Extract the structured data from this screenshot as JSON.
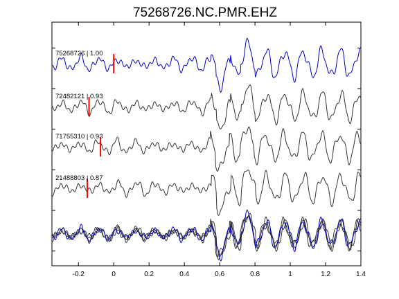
{
  "chart_data": {
    "type": "line",
    "title": "75268726.NC.PMR.EHZ",
    "xlabel": "",
    "ylabel": "",
    "xlim": [
      -0.35,
      1.4
    ],
    "xticks": [
      -0.2,
      0,
      0.2,
      0.4,
      0.6,
      0.8,
      1,
      1.2,
      1.4
    ],
    "xtick_labels": [
      "-0.2",
      "0",
      "0.2",
      "0.4",
      "0.6",
      "0.8",
      "1",
      "1.2",
      "1.4"
    ],
    "grid": false,
    "legend": "none",
    "colors": {
      "reference": "#0000cc",
      "other": "#333333",
      "pick": "#ff0000"
    },
    "series": [
      {
        "label": "75268726 | 1.00",
        "pick_time": 0.0,
        "color": "#0000cc",
        "offset": 0,
        "seed": 1
      },
      {
        "label": "72482121 | 0.93",
        "pick_time": -0.14,
        "color": "#333333",
        "offset": 0.002,
        "seed": 2
      },
      {
        "label": "71755310 | 0.93",
        "pick_time": -0.075,
        "color": "#333333",
        "offset": -0.004,
        "seed": 3
      },
      {
        "label": "21488803 | 0.87",
        "pick_time": -0.15,
        "color": "#333333",
        "offset": 0.003,
        "seed": 4
      }
    ],
    "stack": {
      "description_series": "overlay of all traces"
    }
  }
}
